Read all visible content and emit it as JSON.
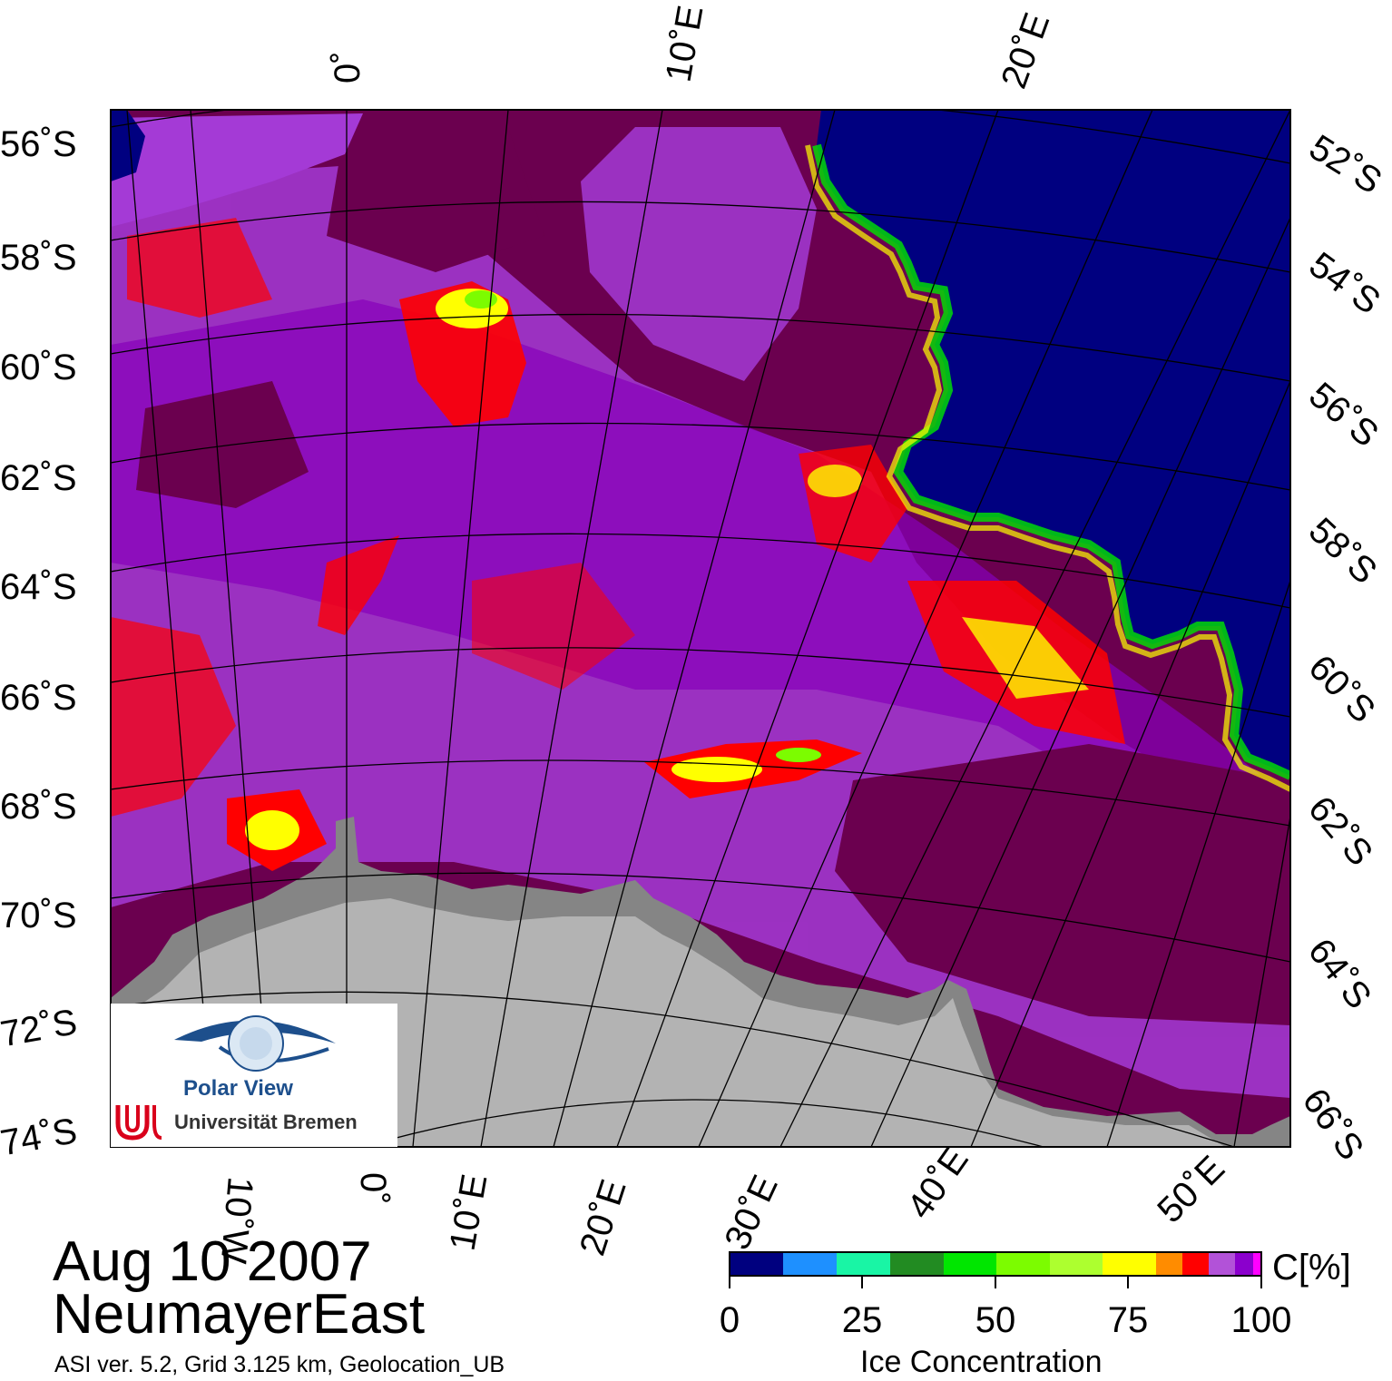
{
  "map": {
    "date": "Aug 10 2007",
    "region": "NeumayerEast",
    "info": "ASI ver. 5.2,  Grid 3.125 km, Geolocation_UB",
    "lat_labels_left": [
      "56˚S",
      "58˚S",
      "60˚S",
      "62˚S",
      "64˚S",
      "66˚S",
      "68˚S",
      "70˚S",
      "72˚S",
      "74˚S"
    ],
    "lat_labels_right": [
      "52˚S",
      "54˚S",
      "56˚S",
      "58˚S",
      "60˚S",
      "62˚S",
      "64˚S",
      "66˚S"
    ],
    "lon_labels_top": [
      "0˚",
      "10˚E",
      "20˚E"
    ],
    "lon_labels_bottom": [
      "10˚W",
      "0˚",
      "10˚E",
      "20˚E",
      "30˚E",
      "40˚E",
      "50˚E"
    ],
    "colors": {
      "open_water": "#000080",
      "high_ice": "#6b004f",
      "land": "#b3b3b3",
      "ice_shelf": "#858585"
    }
  },
  "logo": {
    "title": "Polar View",
    "university": "Universität Bremen"
  },
  "colorbar": {
    "title": "Ice Concentration",
    "unit": "C[%]",
    "ticks": [
      "0",
      "25",
      "50",
      "75",
      "100"
    ],
    "segments": [
      "#00007f",
      "#1e90ff",
      "#19f5a5",
      "#228b22",
      "#00e600",
      "#7cfc00",
      "#adff2f",
      "#ffff00",
      "#ff8c00",
      "#ff0000",
      "#b252d8",
      "#8b00cd",
      "#ff00ff"
    ]
  }
}
